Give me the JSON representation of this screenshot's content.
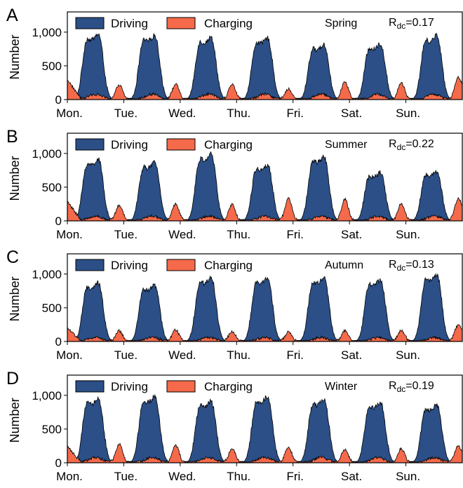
{
  "colors": {
    "driving": "#2b4f86",
    "charging": "#f56a4a",
    "axis": "#000000"
  },
  "chart_data": [
    {
      "type": "area",
      "panel_label": "A",
      "season": "Spring",
      "r_dc_prefix": "R",
      "r_dc_sub": "dc",
      "r_dc_value": "=0.17",
      "ylabel": "Number",
      "ylim": [
        0,
        1300
      ],
      "yticks": [
        0,
        500,
        1000
      ],
      "ytick_labels": [
        "0",
        "500",
        "1,000"
      ],
      "xticklabels": [
        "Mon.",
        "Tue.",
        "Wed.",
        "Thu.",
        "Fri.",
        "Sat.",
        "Sun."
      ],
      "legend": [
        "Driving",
        "Charging"
      ],
      "legend_position": "top",
      "series": [
        {
          "name": "Driving",
          "day_peaks": [
            980,
            960,
            930,
            920,
            820,
            830,
            960
          ],
          "night_low": 20
        },
        {
          "name": "Charging",
          "start": 300,
          "evening_peaks": [
            220,
            230,
            230,
            160,
            270,
            250,
            260
          ],
          "midday": 80,
          "end": 180
        }
      ]
    },
    {
      "type": "area",
      "panel_label": "B",
      "season": "Summer",
      "r_dc_prefix": "R",
      "r_dc_sub": "dc",
      "r_dc_value": "=0.22",
      "ylabel": "Number",
      "ylim": [
        0,
        1300
      ],
      "yticks": [
        0,
        500,
        1000
      ],
      "ytick_labels": [
        "0",
        "500",
        "1,000"
      ],
      "xticklabels": [
        "Mon.",
        "Tue.",
        "Wed.",
        "Thu.",
        "Fri.",
        "Sat.",
        "Sun."
      ],
      "legend": [
        "Driving",
        "Charging"
      ],
      "legend_position": "top",
      "series": [
        {
          "name": "Driving",
          "day_peaks": [
            920,
            870,
            1000,
            840,
            960,
            720,
            740
          ],
          "night_low": 20
        },
        {
          "name": "Charging",
          "start": 290,
          "evening_peaks": [
            230,
            250,
            240,
            330,
            320,
            260,
            250
          ],
          "midday": 70,
          "end": 210
        }
      ]
    },
    {
      "type": "area",
      "panel_label": "C",
      "season": "Autumn",
      "r_dc_prefix": "R",
      "r_dc_sub": "dc",
      "r_dc_value": "=0.13",
      "ylabel": "Number",
      "ylim": [
        0,
        1300
      ],
      "yticks": [
        0,
        500,
        1000
      ],
      "ytick_labels": [
        "0",
        "500",
        "1,000"
      ],
      "xticklabels": [
        "Mon.",
        "Tue.",
        "Wed.",
        "Thu.",
        "Fri.",
        "Sat.",
        "Sun."
      ],
      "legend": [
        "Driving",
        "Charging"
      ],
      "legend_position": "top",
      "series": [
        {
          "name": "Driving",
          "day_peaks": [
            870,
            840,
            960,
            950,
            950,
            920,
            1000
          ],
          "night_low": 15
        },
        {
          "name": "Charging",
          "start": 200,
          "evening_peaks": [
            160,
            170,
            150,
            140,
            160,
            170,
            180
          ],
          "midday": 60,
          "end": 160
        }
      ]
    },
    {
      "type": "area",
      "panel_label": "D",
      "season": "Winter",
      "r_dc_prefix": "R",
      "r_dc_sub": "dc",
      "r_dc_value": "=0.19",
      "ylabel": "Number",
      "ylim": [
        0,
        1300
      ],
      "yticks": [
        0,
        500,
        1000
      ],
      "ytick_labels": [
        "0",
        "500",
        "1,000"
      ],
      "xticklabels": [
        "Mon.",
        "Tue.",
        "Wed.",
        "Thu.",
        "Fri.",
        "Sat.",
        "Sun."
      ],
      "legend": [
        "Driving",
        "Charging"
      ],
      "legend_position": "top",
      "series": [
        {
          "name": "Driving",
          "day_peaks": [
            960,
            990,
            920,
            990,
            950,
            900,
            860
          ],
          "night_low": 20
        },
        {
          "name": "Charging",
          "start": 240,
          "evening_peaks": [
            280,
            260,
            210,
            230,
            200,
            210,
            200
          ],
          "midday": 80,
          "end": 120
        }
      ]
    }
  ]
}
